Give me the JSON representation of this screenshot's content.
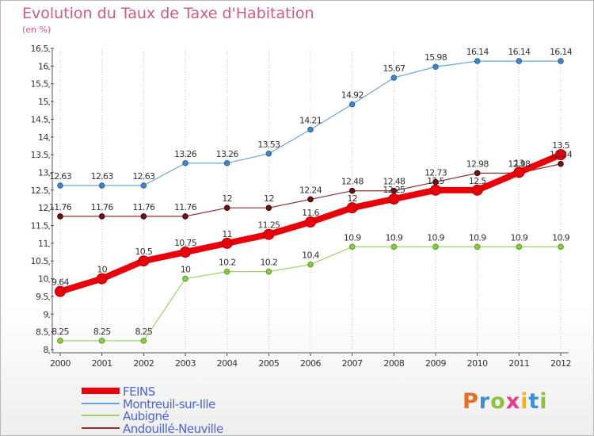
{
  "title": "Evolution du Taux de Taxe d'Habitation",
  "subtitle": "(en %)",
  "logo": "Proxiti",
  "chart_data": {
    "type": "line",
    "title": "Evolution du Taux de Taxe d'Habitation",
    "ylabel": "(en %)",
    "xlabel": "",
    "x": [
      "2000",
      "2001",
      "2002",
      "2003",
      "2004",
      "2005",
      "2006",
      "2007",
      "2008",
      "2009",
      "2010",
      "2011",
      "2012"
    ],
    "ylim": [
      8,
      16.5
    ],
    "yticks": [
      "8",
      "8.5",
      "9",
      "9.5",
      "10",
      "10.5",
      "11",
      "11.5",
      "12",
      "12.5",
      "13",
      "13.5",
      "14",
      "14.5",
      "15",
      "15.5",
      "16",
      "16.5"
    ],
    "grid": "vertical dotted",
    "legend_position": "bottom-left",
    "series": [
      {
        "name": "FEINS",
        "color": "#e8000b",
        "values": [
          9.64,
          10,
          10.5,
          10.75,
          11,
          11.25,
          11.6,
          12,
          12.25,
          12.5,
          12.5,
          13,
          13.5
        ],
        "labels": [
          "9.64",
          "10",
          "10.5",
          "10.75",
          "11",
          "11.25",
          "11.6",
          "12",
          "12.25",
          "12.5",
          "12.5",
          "13",
          "13.5"
        ]
      },
      {
        "name": "Montreuil-sur-Ille",
        "color": "#5a9bd4",
        "values": [
          12.63,
          12.63,
          12.63,
          13.26,
          13.26,
          13.53,
          14.21,
          14.92,
          15.67,
          15.98,
          16.14,
          16.14,
          16.14
        ],
        "labels": [
          "12.63",
          "12.63",
          "12.63",
          "13.26",
          "13.26",
          "13.53",
          "14.21",
          "14.92",
          "15.67",
          "15.98",
          "16.14",
          "16.14",
          "16.14"
        ]
      },
      {
        "name": "Aubigné",
        "color": "#8fd45a",
        "values": [
          8.25,
          8.25,
          8.25,
          10,
          10.2,
          10.2,
          10.4,
          10.9,
          10.9,
          10.9,
          10.9,
          10.9,
          10.9
        ],
        "labels": [
          "8.25",
          "8.25",
          "8.25",
          "10",
          "10.2",
          "10.2",
          "10.4",
          "10.9",
          "10.9",
          "10.9",
          "10.9",
          "10.9",
          "10.9"
        ]
      },
      {
        "name": "Andouillé-Neuville",
        "color": "#7b2020",
        "values": [
          11.76,
          11.76,
          11.76,
          11.76,
          12,
          12,
          12.24,
          12.48,
          12.48,
          12.73,
          12.98,
          12.98,
          13.24
        ],
        "labels": [
          "11.76",
          "11.76",
          "11.76",
          "11.76",
          "12",
          "12",
          "12.24",
          "12.48",
          "12.48",
          "12.73",
          "12.98",
          "12.98",
          "13.24"
        ]
      }
    ]
  }
}
